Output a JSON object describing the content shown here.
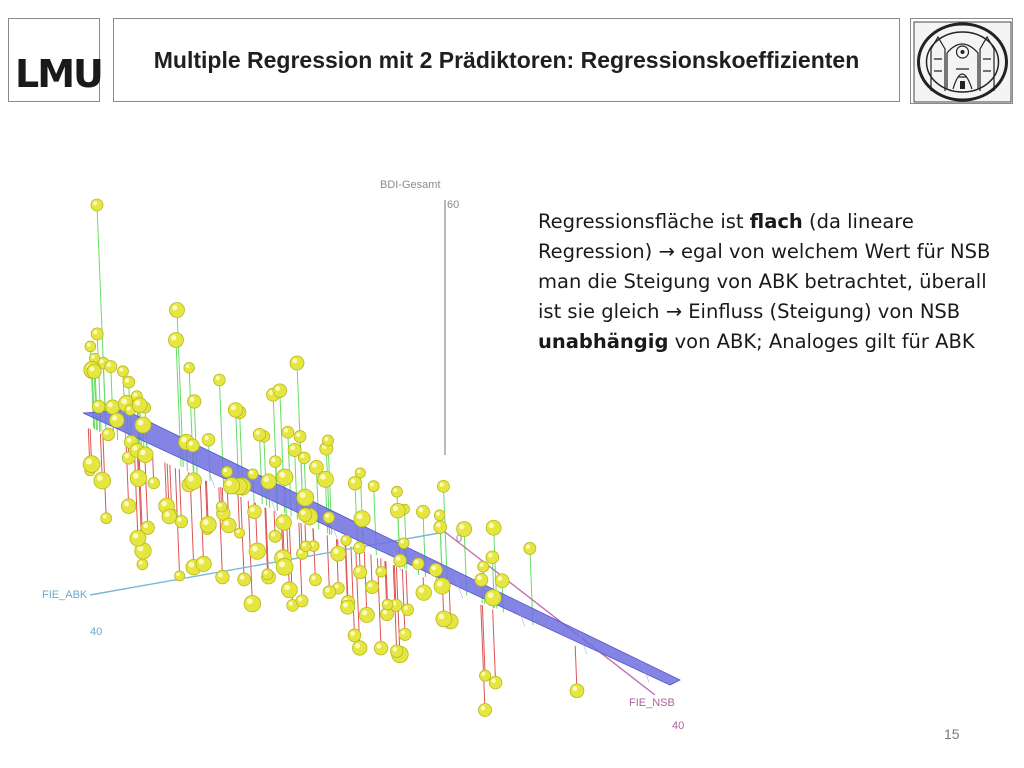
{
  "logo": {
    "text": "LMU"
  },
  "slide": {
    "title": "Multiple Regression mit 2 Prädiktoren: Regressionskoeffizienten",
    "page_number": "15"
  },
  "plot": {
    "axis_z_label": "BDI-Gesamt",
    "axis_z_tick": "60",
    "axis_x_label": "FIE_ABK",
    "axis_x_tick": "40",
    "axis_y_label": "FIE_NSB",
    "axis_y_tick": "40",
    "origin_tick": "0",
    "colors": {
      "plane": "#6f6fe0",
      "points": "#e6e640",
      "above_lines": "#66dd66",
      "below_lines": "#dd5555",
      "z_axis": "#9a9a9a",
      "x_axis": "#7bb8d8",
      "y_axis": "#c070b0"
    }
  },
  "text": {
    "seg1": "Regressionsfläche ist ",
    "seg2": "flach",
    "seg3": " (da lineare Regression) ",
    "arrow1": "→",
    "seg4": " egal von welchem Wert für NSB man die Steigung von ABK betrachtet, überall ist sie gleich ",
    "arrow2": "→",
    "seg5": " Einfluss (Steigung) von NSB ",
    "seg6": "unabhängig",
    "seg7": " von ABK; Analoges gilt für ABK"
  }
}
